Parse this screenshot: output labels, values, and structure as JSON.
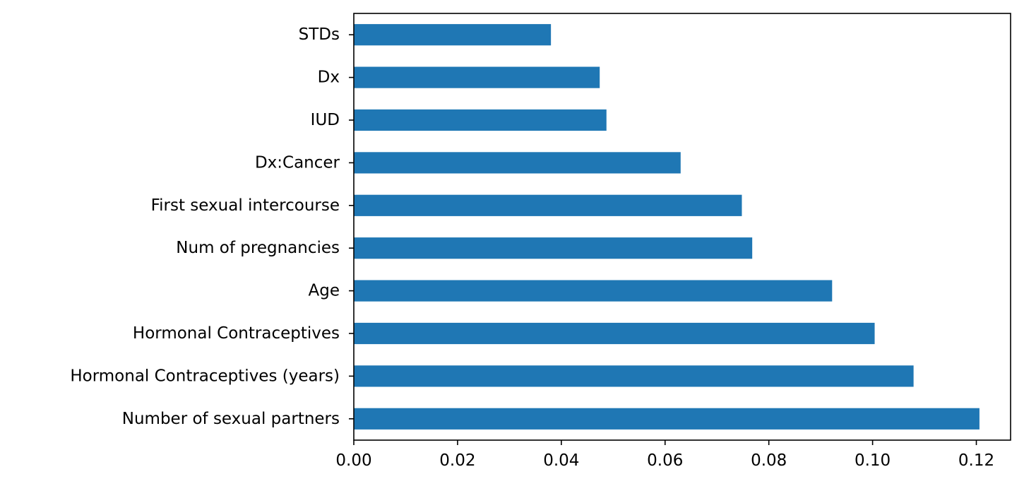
{
  "chart_data": {
    "type": "bar",
    "orientation": "horizontal",
    "categories": [
      "Number of sexual partners",
      "Hormonal Contraceptives (years)",
      "Hormonal Contraceptives",
      "Age",
      "Num of pregnancies",
      "First sexual intercourse",
      "Dx:Cancer",
      "IUD",
      "Dx",
      "STDs"
    ],
    "values": [
      0.1206,
      0.1079,
      0.1004,
      0.0922,
      0.0768,
      0.0748,
      0.063,
      0.0487,
      0.0474,
      0.038
    ],
    "xlim": [
      0,
      0.1266
    ],
    "xticks": [
      0.0,
      0.02,
      0.04,
      0.06,
      0.08,
      0.1,
      0.12
    ],
    "xtick_labels": [
      "0.00",
      "0.02",
      "0.04",
      "0.06",
      "0.08",
      "0.10",
      "0.12"
    ],
    "title": "",
    "xlabel": "",
    "ylabel": "",
    "grid": false,
    "bar_color": "#1f77b4"
  }
}
